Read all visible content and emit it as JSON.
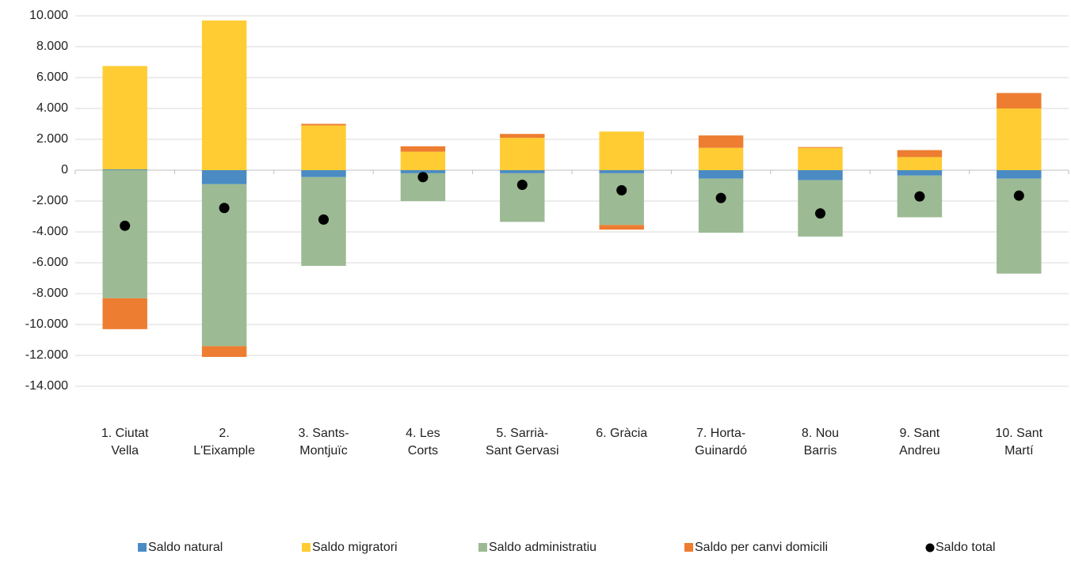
{
  "chart_data": {
    "type": "bar",
    "stacked": true,
    "categories": [
      [
        "1. Ciutat",
        "Vella"
      ],
      [
        "2.",
        "L'Eixample"
      ],
      [
        "3. Sants-",
        "Montjuïc"
      ],
      [
        "4. Les",
        "Corts"
      ],
      [
        "5. Sarrià-",
        "Sant Gervasi"
      ],
      [
        "6. Gràcia"
      ],
      [
        "7. Horta-",
        "Guinardó"
      ],
      [
        "8. Nou",
        "Barris"
      ],
      [
        "9. Sant",
        "Andreu"
      ],
      [
        "10. Sant",
        "Martí"
      ]
    ],
    "series": [
      {
        "name": "Saldo natural",
        "color": "#4a8bc4",
        "values": [
          50,
          -900,
          -450,
          -200,
          -200,
          -200,
          -550,
          -650,
          -350,
          -550
        ]
      },
      {
        "name": "Saldo migratori",
        "color": "#ffcc33",
        "values": [
          6700,
          9700,
          2900,
          1200,
          2100,
          2500,
          1450,
          1450,
          850,
          4000
        ]
      },
      {
        "name": "Saldo administratiu",
        "color": "#9cba93",
        "values": [
          -8300,
          -10500,
          -5750,
          -1800,
          -3150,
          -3350,
          -3500,
          -3650,
          -2700,
          -6150
        ]
      },
      {
        "name": "Saldo per canvi domicili",
        "color": "#ed7d31",
        "values": [
          -2000,
          -700,
          100,
          350,
          250,
          -300,
          800,
          50,
          450,
          1000
        ]
      },
      {
        "name": "Saldo total",
        "color": "#000000",
        "type": "scatter",
        "values": [
          -3600,
          -2450,
          -3200,
          -450,
          -950,
          -1300,
          -1800,
          -2800,
          -1700,
          -1650
        ]
      }
    ],
    "ylim": [
      -14000,
      10000
    ],
    "yticks": [
      {
        "value": -14000,
        "label": "-14.000"
      },
      {
        "value": -12000,
        "label": "-12.000"
      },
      {
        "value": -10000,
        "label": "-10.000"
      },
      {
        "value": -8000,
        "label": "-8.000"
      },
      {
        "value": -6000,
        "label": "-6.000"
      },
      {
        "value": -4000,
        "label": "-4.000"
      },
      {
        "value": -2000,
        "label": "-2.000"
      },
      0,
      {
        "value": 2000,
        "label": "2.000"
      },
      {
        "value": 4000,
        "label": "4.000"
      },
      {
        "value": 6000,
        "label": "6.000"
      },
      {
        "value": 8000,
        "label": "8.000"
      },
      {
        "value": 10000,
        "label": "10.000"
      }
    ],
    "grid": true,
    "legend": "bottom"
  }
}
